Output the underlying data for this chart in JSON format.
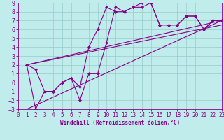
{
  "xlabel": "Windchill (Refroidissement éolien,°C)",
  "xlim": [
    0,
    23
  ],
  "ylim": [
    -3,
    9
  ],
  "xticks": [
    0,
    1,
    2,
    3,
    4,
    5,
    6,
    7,
    8,
    9,
    10,
    11,
    12,
    13,
    14,
    15,
    16,
    17,
    18,
    19,
    20,
    21,
    22,
    23
  ],
  "yticks": [
    -3,
    -2,
    -1,
    0,
    1,
    2,
    3,
    4,
    5,
    6,
    7,
    8,
    9
  ],
  "line_color": "#880088",
  "bg_color": "#c0ecec",
  "grid_color": "#99cccc",
  "series1_x": [
    1,
    2,
    3,
    4,
    5,
    6,
    7,
    8,
    9,
    10,
    11,
    12,
    13,
    14,
    15,
    16,
    17,
    18,
    19,
    20,
    21,
    22,
    23
  ],
  "series1_y": [
    2,
    1.5,
    -1,
    -1,
    0,
    0.5,
    -0.5,
    4,
    6,
    8.5,
    8,
    8,
    8.5,
    9,
    9,
    6.5,
    6.5,
    6.5,
    7.5,
    7.5,
    6,
    7,
    7
  ],
  "series2_x": [
    1,
    2,
    3,
    4,
    5,
    6,
    7,
    8,
    9,
    10,
    11,
    12,
    13,
    14,
    15,
    16,
    17,
    18,
    19,
    20,
    21,
    22,
    23
  ],
  "series2_y": [
    2,
    -3,
    -1,
    -1,
    0,
    0.5,
    -2,
    1,
    1,
    4.5,
    8.5,
    8,
    8.5,
    8.5,
    9,
    6.5,
    6.5,
    6.5,
    7.5,
    7.5,
    6,
    7,
    7
  ],
  "trend1_x": [
    1,
    23
  ],
  "trend1_y": [
    2,
    6.5
  ],
  "trend2_x": [
    1,
    23
  ],
  "trend2_y": [
    2,
    7.0
  ],
  "trend3_x": [
    1,
    23
  ],
  "trend3_y": [
    -3,
    7.0
  ],
  "marker_size": 2.5,
  "line_width": 0.8,
  "tick_fontsize": 5.5,
  "xlabel_fontsize": 5.5
}
